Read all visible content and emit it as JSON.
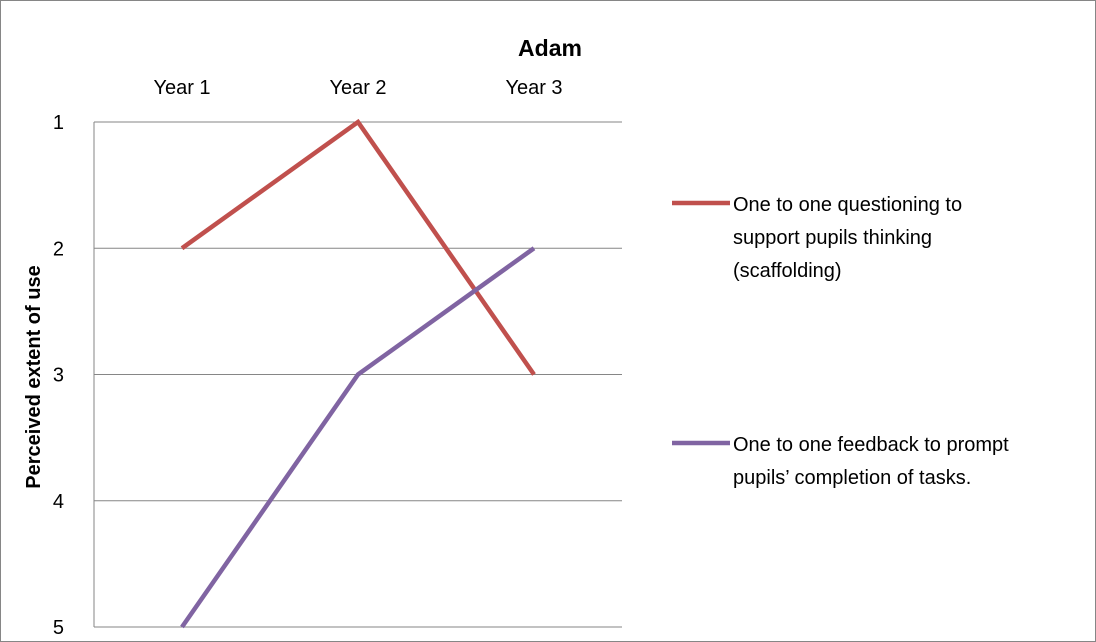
{
  "chart_data": {
    "type": "line",
    "title": "Adam",
    "xlabel": "",
    "ylabel": "Perceived extent of use",
    "categories": [
      "Year 1",
      "Year 2",
      "Year 3"
    ],
    "ylim": [
      1,
      5
    ],
    "y_reversed": true,
    "y_ticks": [
      "1",
      "2",
      "3",
      "4",
      "5"
    ],
    "x_axis_position": "top",
    "grid": true,
    "legend_position": "right",
    "series": [
      {
        "name_lines": [
          "One to one questioning to",
          "support pupils thinking",
          "(scaffolding)"
        ],
        "color": "#C0504D",
        "values": [
          2,
          1,
          3
        ]
      },
      {
        "name_lines": [
          "One to one feedback to prompt",
          "pupils’ completion of tasks."
        ],
        "color": "#8064A2",
        "values": [
          5,
          3,
          2
        ]
      }
    ]
  }
}
